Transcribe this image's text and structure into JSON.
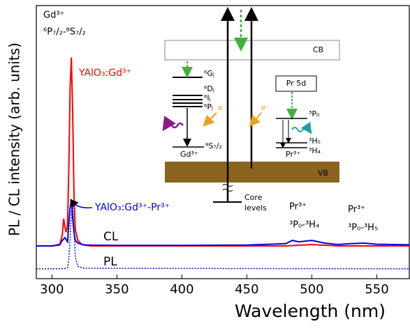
{
  "chart_data": {
    "type": "line",
    "x_label": "Wavelength (nm)",
    "y_label": "PL / CL intensity (arb. units)",
    "xlim": [
      288,
      575
    ],
    "xticks": [
      300,
      350,
      400,
      450,
      500,
      550
    ],
    "ylim": [
      0,
      100
    ],
    "series": [
      {
        "name": "YAlO₃:Gd³⁺",
        "color": "#ff0000",
        "style": "solid",
        "x": [
          288,
          300,
          306,
          308,
          309,
          310,
          311,
          312,
          313,
          314,
          315,
          316,
          317,
          318,
          320,
          323,
          330,
          400,
          480,
          500,
          520,
          575
        ],
        "values": [
          12,
          12,
          12.3,
          16,
          22,
          19,
          17,
          20,
          40,
          70,
          81,
          60,
          30,
          18,
          14,
          12.5,
          12,
          12,
          12,
          12.5,
          12,
          12
        ]
      },
      {
        "name": "YAlO₃:Gd³⁺-Pr³⁺",
        "color": "#0000e0",
        "style": "solid",
        "x": [
          288,
          300,
          306,
          308,
          310,
          312,
          313,
          314,
          315,
          316,
          317,
          318,
          320,
          325,
          350,
          400,
          450,
          480,
          485,
          490,
          500,
          510,
          520,
          530,
          540,
          550,
          575
        ],
        "values": [
          12,
          12,
          12.5,
          14,
          15,
          13.5,
          20,
          26,
          29,
          22,
          17,
          14,
          13,
          12.3,
          12.2,
          12.2,
          12.3,
          12.8,
          14,
          13.5,
          14,
          13,
          12.5,
          12.8,
          13,
          12.6,
          12.4
        ]
      },
      {
        "color": "#0000e0",
        "style": "dotted",
        "x": [
          288,
          300,
          310,
          312,
          313,
          314,
          315,
          316,
          317,
          318,
          320,
          325,
          575
        ],
        "values": [
          3.6,
          3.6,
          3.7,
          4,
          7,
          15,
          24,
          26.5,
          18,
          8,
          4.5,
          3.8,
          3.6
        ]
      }
    ],
    "annotations": {
      "gd_title": "Gd³⁺",
      "gd_transition": "⁶P₇/₂-⁸S₇/₂",
      "cl": "CL",
      "pl": "PL",
      "pr1_ion": "Pr³⁺",
      "pr1_transition": "³P₀-³H₄",
      "pr2_ion": "Pr³⁺",
      "pr2_transition": "³P₀-³H₅"
    },
    "inset": {
      "cb": "CB",
      "vb": "VB",
      "core1": "Core",
      "core2": "levels",
      "pr5d": "Pr 5d",
      "g": "⁶Gⱼ",
      "d": "⁶Dⱼ",
      "i": "⁶Iⱼ",
      "p": "⁶Pⱼ",
      "s": "⁸S₇/₂",
      "gd": "Gd³⁺",
      "p0": "³P₀",
      "h5": "³H₅",
      "h4": "³H₄",
      "pr": "Pr³⁺",
      "e1": "e⁻",
      "e2": "e⁻"
    }
  }
}
